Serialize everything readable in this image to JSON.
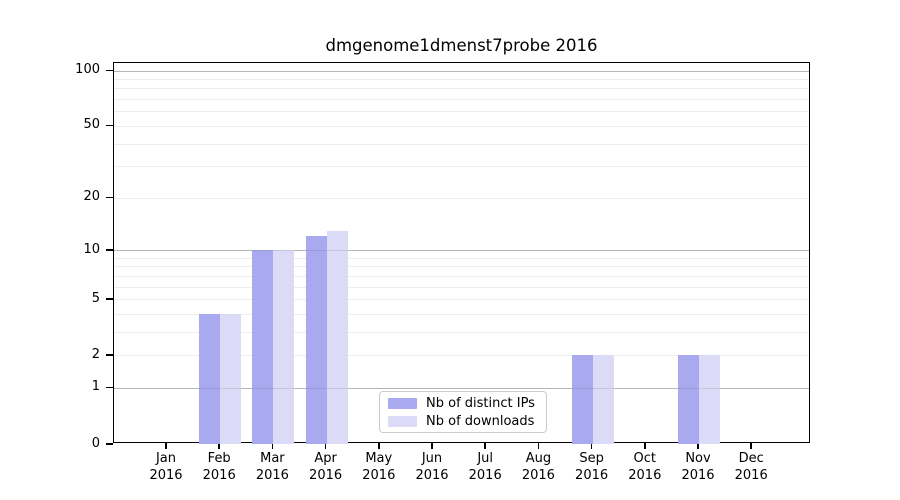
{
  "title": "dmgenome1dmenst7probe 2016",
  "chart_data": {
    "type": "bar",
    "categories": [
      {
        "month": "Jan",
        "year": "2016"
      },
      {
        "month": "Feb",
        "year": "2016"
      },
      {
        "month": "Mar",
        "year": "2016"
      },
      {
        "month": "Apr",
        "year": "2016"
      },
      {
        "month": "May",
        "year": "2016"
      },
      {
        "month": "Jun",
        "year": "2016"
      },
      {
        "month": "Jul",
        "year": "2016"
      },
      {
        "month": "Aug",
        "year": "2016"
      },
      {
        "month": "Sep",
        "year": "2016"
      },
      {
        "month": "Oct",
        "year": "2016"
      },
      {
        "month": "Nov",
        "year": "2016"
      },
      {
        "month": "Dec",
        "year": "2016"
      }
    ],
    "series": [
      {
        "name": "Nb of distinct IPs",
        "color": "#a9a9f0",
        "values": [
          0,
          4,
          10,
          12,
          0,
          0,
          0,
          0,
          2,
          0,
          2,
          0
        ]
      },
      {
        "name": "Nb of downloads",
        "color": "#dbdbf8",
        "values": [
          0,
          4,
          10,
          13,
          0,
          0,
          0,
          0,
          2,
          0,
          2,
          0
        ]
      }
    ],
    "yticks": [
      0,
      1,
      2,
      5,
      10,
      20,
      50,
      100
    ],
    "ylim": [
      0,
      110
    ],
    "scale": "log10(1+y)",
    "grid": {
      "major_values": [
        1,
        10,
        100
      ],
      "minor_values": [
        3,
        4,
        6,
        7,
        8,
        9,
        30,
        40,
        60,
        70,
        80,
        90,
        2,
        5,
        20,
        50
      ],
      "major_color": "#c9c9c9",
      "minor_color": "#ededed"
    },
    "legend_position": "lower center",
    "xlabel": "",
    "ylabel": ""
  },
  "colors": {
    "spine": "#000000",
    "background": "#ffffff"
  }
}
